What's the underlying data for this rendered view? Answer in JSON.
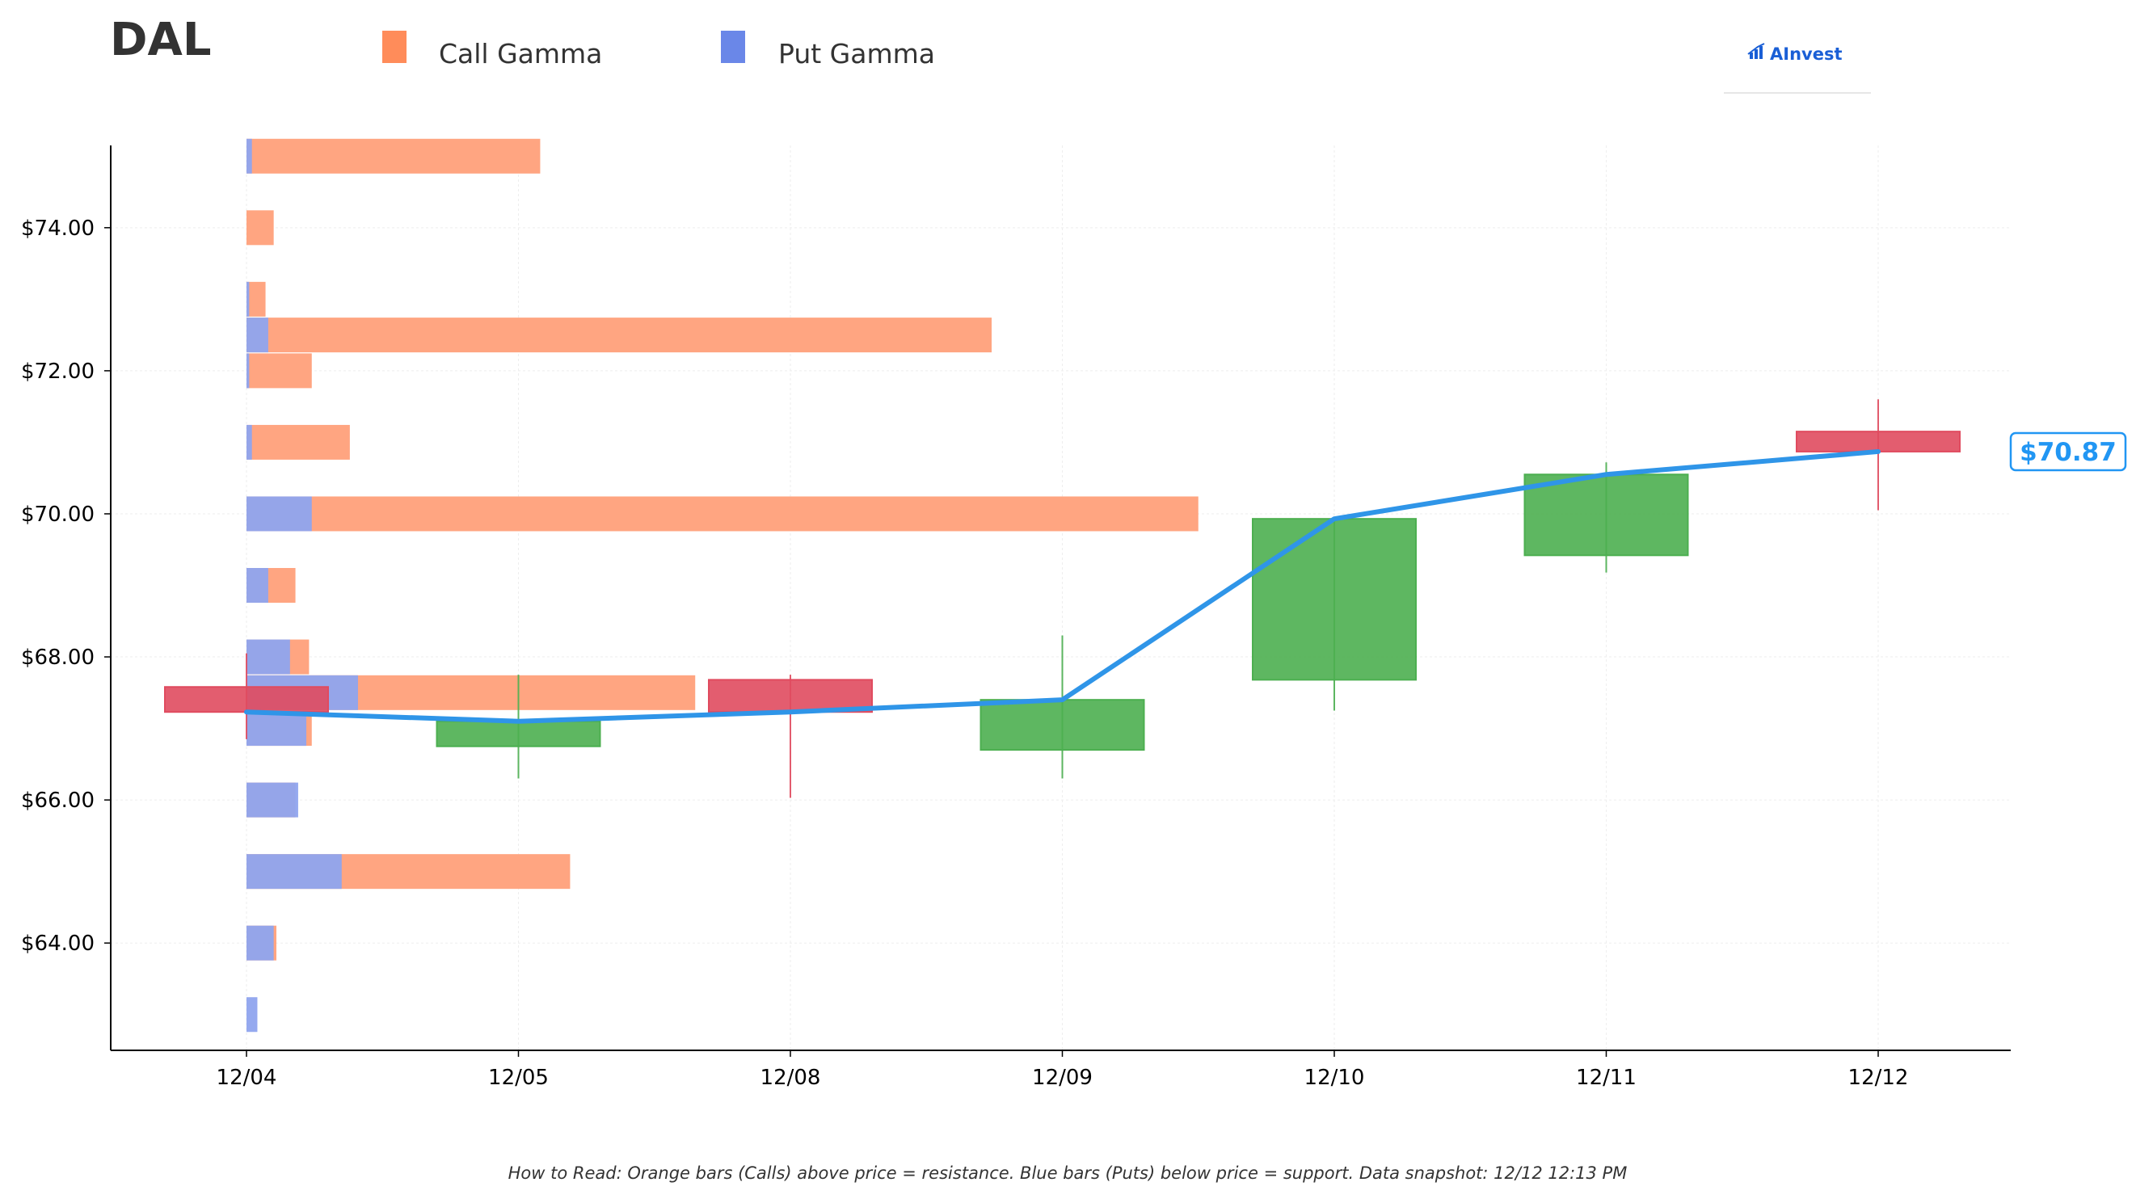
{
  "ticker": "DAL",
  "logo": {
    "text": "AInvest"
  },
  "legend": [
    {
      "label": "Call Gamma",
      "color": "#ff8c5a"
    },
    {
      "label": "Put Gamma",
      "color": "#6a87e8"
    }
  ],
  "current_price_label": "$70.87",
  "footnote": "How to Read: Orange bars (Calls) above price = resistance. Blue bars (Puts) below price = support. Data snapshot: 12/12 12:13 PM",
  "colors": {
    "up": "#4caf50",
    "down": "#e04b5f",
    "line": "#2f95e8",
    "call": "#ffa07a",
    "put": "#8fa4ee"
  },
  "chart_data": {
    "type": "candlestick",
    "title": "DAL",
    "xlabel": "",
    "ylabel": "",
    "categories": [
      "12/04",
      "12/05",
      "12/08",
      "12/09",
      "12/10",
      "12/11",
      "12/12"
    ],
    "ylim": [
      62.5,
      75.15
    ],
    "y_ticks": [
      64,
      66,
      68,
      70,
      72,
      74
    ],
    "y_tick_labels": [
      "$64.00",
      "$66.00",
      "$68.00",
      "$70.00",
      "$72.00",
      "$74.00"
    ],
    "grid": true,
    "legend_position": "top-left",
    "candles": [
      {
        "date": "12/04",
        "open": 67.58,
        "high": 68.05,
        "low": 66.85,
        "close": 67.23
      },
      {
        "date": "12/05",
        "open": 66.75,
        "high": 67.75,
        "low": 66.3,
        "close": 67.1
      },
      {
        "date": "12/08",
        "open": 67.68,
        "high": 67.75,
        "low": 66.03,
        "close": 67.23
      },
      {
        "date": "12/09",
        "open": 66.7,
        "high": 68.3,
        "low": 66.3,
        "close": 67.4
      },
      {
        "date": "12/10",
        "open": 67.68,
        "high": 69.93,
        "low": 67.25,
        "close": 69.93
      },
      {
        "date": "12/11",
        "open": 69.42,
        "high": 70.72,
        "low": 69.18,
        "close": 70.55
      },
      {
        "date": "12/12",
        "open": 71.15,
        "high": 71.6,
        "low": 70.05,
        "close": 70.87
      }
    ],
    "close_line": [
      {
        "date": "12/04",
        "value": 67.23
      },
      {
        "date": "12/05",
        "value": 67.1
      },
      {
        "date": "12/08",
        "value": 67.23
      },
      {
        "date": "12/09",
        "value": 67.4
      },
      {
        "date": "12/10",
        "value": 69.93
      },
      {
        "date": "12/11",
        "value": 70.55
      },
      {
        "date": "12/12",
        "value": 70.87
      }
    ],
    "gamma_unit_note": "relative gamma exposure, measured in x-category widths from 12/04",
    "gamma": [
      {
        "strike": 75,
        "call": 1.08,
        "put": 0.02
      },
      {
        "strike": 74,
        "call": 0.1,
        "put": 0
      },
      {
        "strike": 73,
        "call": 0.07,
        "put": 0.01
      },
      {
        "strike": 72.5,
        "call": 2.74,
        "put": 0.08
      },
      {
        "strike": 72,
        "call": 0.24,
        "put": 0.01
      },
      {
        "strike": 71,
        "call": 0.38,
        "put": 0.02
      },
      {
        "strike": 70,
        "call": 3.5,
        "put": 0.24
      },
      {
        "strike": 69,
        "call": 0.18,
        "put": 0.08
      },
      {
        "strike": 68,
        "call": 0.23,
        "put": 0.16
      },
      {
        "strike": 67.5,
        "call": 1.65,
        "put": 0.41
      },
      {
        "strike": 67,
        "call": 0.24,
        "put": 0.22
      },
      {
        "strike": 66,
        "call": 0.18,
        "put": 0.19
      },
      {
        "strike": 65,
        "call": 1.19,
        "put": 0.35
      },
      {
        "strike": 64,
        "call": 0.11,
        "put": 0.1
      },
      {
        "strike": 63,
        "call": 0,
        "put": 0.04
      }
    ]
  }
}
